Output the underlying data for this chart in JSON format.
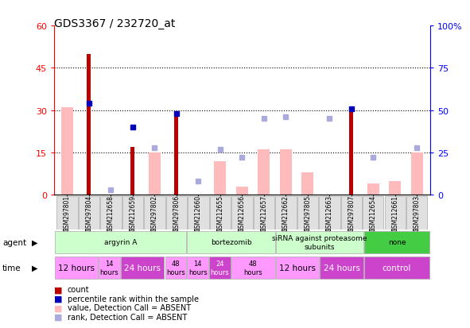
{
  "title": "GDS3367 / 232720_at",
  "samples": [
    "GSM297801",
    "GSM297804",
    "GSM212658",
    "GSM212659",
    "GSM297802",
    "GSM297806",
    "GSM212660",
    "GSM212655",
    "GSM212656",
    "GSM212657",
    "GSM212662",
    "GSM297805",
    "GSM212663",
    "GSM297807",
    "GSM212654",
    "GSM212661",
    "GSM297803"
  ],
  "count_values": [
    null,
    50,
    null,
    17,
    null,
    29,
    null,
    null,
    null,
    null,
    null,
    null,
    null,
    31,
    null,
    null,
    null
  ],
  "count_absent_values": [
    31,
    null,
    null,
    null,
    15,
    null,
    null,
    12,
    3,
    16,
    16,
    8,
    null,
    null,
    4,
    5,
    15
  ],
  "rank_values": [
    null,
    54,
    null,
    40,
    null,
    48,
    null,
    null,
    null,
    null,
    null,
    null,
    null,
    51,
    null,
    null,
    null
  ],
  "rank_absent_values": [
    null,
    null,
    3,
    null,
    28,
    null,
    8,
    27,
    22,
    45,
    46,
    null,
    45,
    null,
    22,
    null,
    28
  ],
  "agent_groups": [
    {
      "label": "argyrin A",
      "start": 0,
      "end": 6,
      "color": "#ccffcc"
    },
    {
      "label": "bortezomib",
      "start": 6,
      "end": 10,
      "color": "#ccffcc"
    },
    {
      "label": "siRNA against proteasome\nsubunits",
      "start": 10,
      "end": 14,
      "color": "#ccffcc"
    },
    {
      "label": "none",
      "start": 14,
      "end": 17,
      "color": "#44cc44"
    }
  ],
  "time_data": [
    {
      "label": "12 hours",
      "start": 0,
      "end": 2,
      "color": "#ff99ff",
      "small": false
    },
    {
      "label": "14\nhours",
      "start": 2,
      "end": 3,
      "color": "#ff99ff",
      "small": true
    },
    {
      "label": "24 hours",
      "start": 3,
      "end": 5,
      "color": "#cc44cc",
      "small": false
    },
    {
      "label": "48\nhours",
      "start": 5,
      "end": 6,
      "color": "#ff99ff",
      "small": true
    },
    {
      "label": "14\nhours",
      "start": 6,
      "end": 7,
      "color": "#ff99ff",
      "small": true
    },
    {
      "label": "24\nhours",
      "start": 7,
      "end": 8,
      "color": "#cc44cc",
      "small": true
    },
    {
      "label": "48\nhours",
      "start": 8,
      "end": 10,
      "color": "#ff99ff",
      "small": true
    },
    {
      "label": "12 hours",
      "start": 10,
      "end": 12,
      "color": "#ff99ff",
      "small": false
    },
    {
      "label": "24 hours",
      "start": 12,
      "end": 14,
      "color": "#cc44cc",
      "small": false
    },
    {
      "label": "control",
      "start": 14,
      "end": 17,
      "color": "#cc44cc",
      "small": false
    }
  ],
  "ylim_left": [
    0,
    60
  ],
  "ylim_right": [
    0,
    100
  ],
  "yticks_left": [
    0,
    15,
    30,
    45,
    60
  ],
  "ytick_labels_left": [
    "0",
    "15",
    "30",
    "45",
    "60"
  ],
  "yticks_right": [
    0,
    25,
    50,
    75,
    100
  ],
  "ytick_labels_right": [
    "0",
    "25",
    "50",
    "75",
    "100%"
  ],
  "count_color": "#bb0000",
  "count_absent_color": "#ffbbbb",
  "rank_color": "#0000bb",
  "rank_absent_color": "#aaaadd",
  "background_color": "#ffffff",
  "plot_bg_color": "#ffffff"
}
